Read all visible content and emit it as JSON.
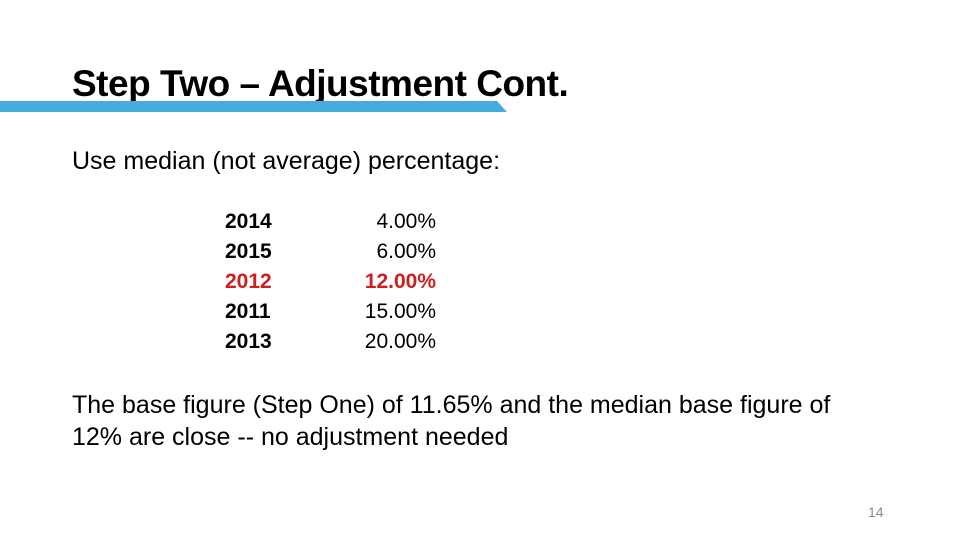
{
  "slide": {
    "title": "Step Two – Adjustment Cont.",
    "accent_color": "#45ACDB",
    "highlight_color": "#CC2020",
    "intro": "Use median (not average) percentage:",
    "table": {
      "rows": [
        {
          "year": "2014",
          "pct": "4.00%"
        },
        {
          "year": "2015",
          "pct": "6.00%"
        },
        {
          "year": "2012",
          "pct": "12.00%"
        },
        {
          "year": "2011",
          "pct": "15.00%"
        },
        {
          "year": "2013",
          "pct": "20.00%"
        }
      ],
      "highlighted_year": "2012"
    },
    "conclusion_lines": [
      "The base figure (Step One) of 11.65% and the median base figure of",
      "12% are close -- no adjustment needed"
    ],
    "page_number": "14"
  }
}
